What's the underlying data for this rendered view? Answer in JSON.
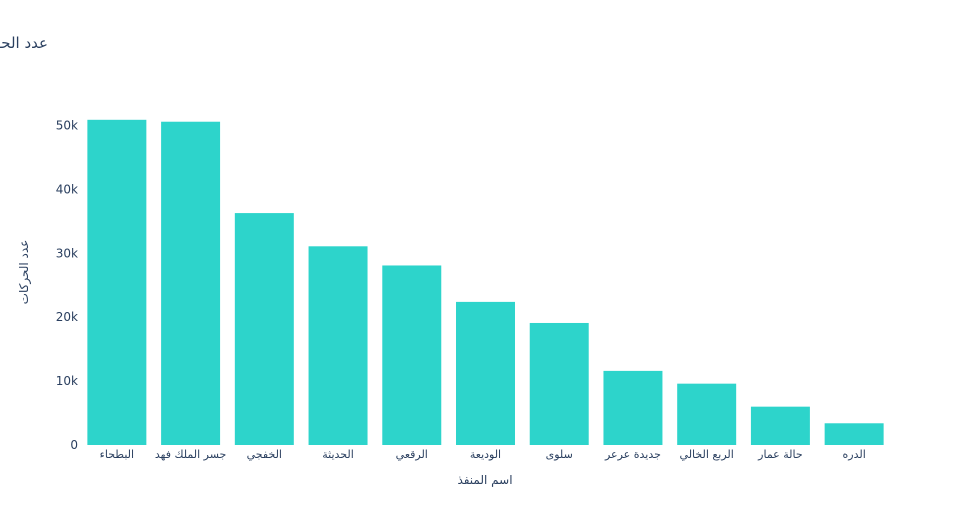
{
  "chart_data": {
    "type": "bar",
    "title": "عدد الحركات في كل منفذ",
    "xlabel": "اسم المنفذ",
    "ylabel": "عدد الحركات",
    "categories": [
      "البطحاء",
      "جسر الملك فهد",
      "الخفجي",
      "الحديثة",
      "الرقعي",
      "الوديعة",
      "سلوى",
      "جديدة عرعر",
      "الربع الخالي",
      "حالة عمار",
      "الدره"
    ],
    "values": [
      50900,
      50600,
      36300,
      31100,
      28100,
      22400,
      19100,
      11600,
      9600,
      6000,
      3400
    ],
    "ylim": [
      0,
      54000
    ],
    "yticks": [
      0,
      10000,
      20000,
      30000,
      40000,
      50000
    ],
    "ytick_labels": [
      "0",
      "10k",
      "20k",
      "30k",
      "40k",
      "50k"
    ],
    "bar_color": "#2dd4cb",
    "grid": false
  }
}
